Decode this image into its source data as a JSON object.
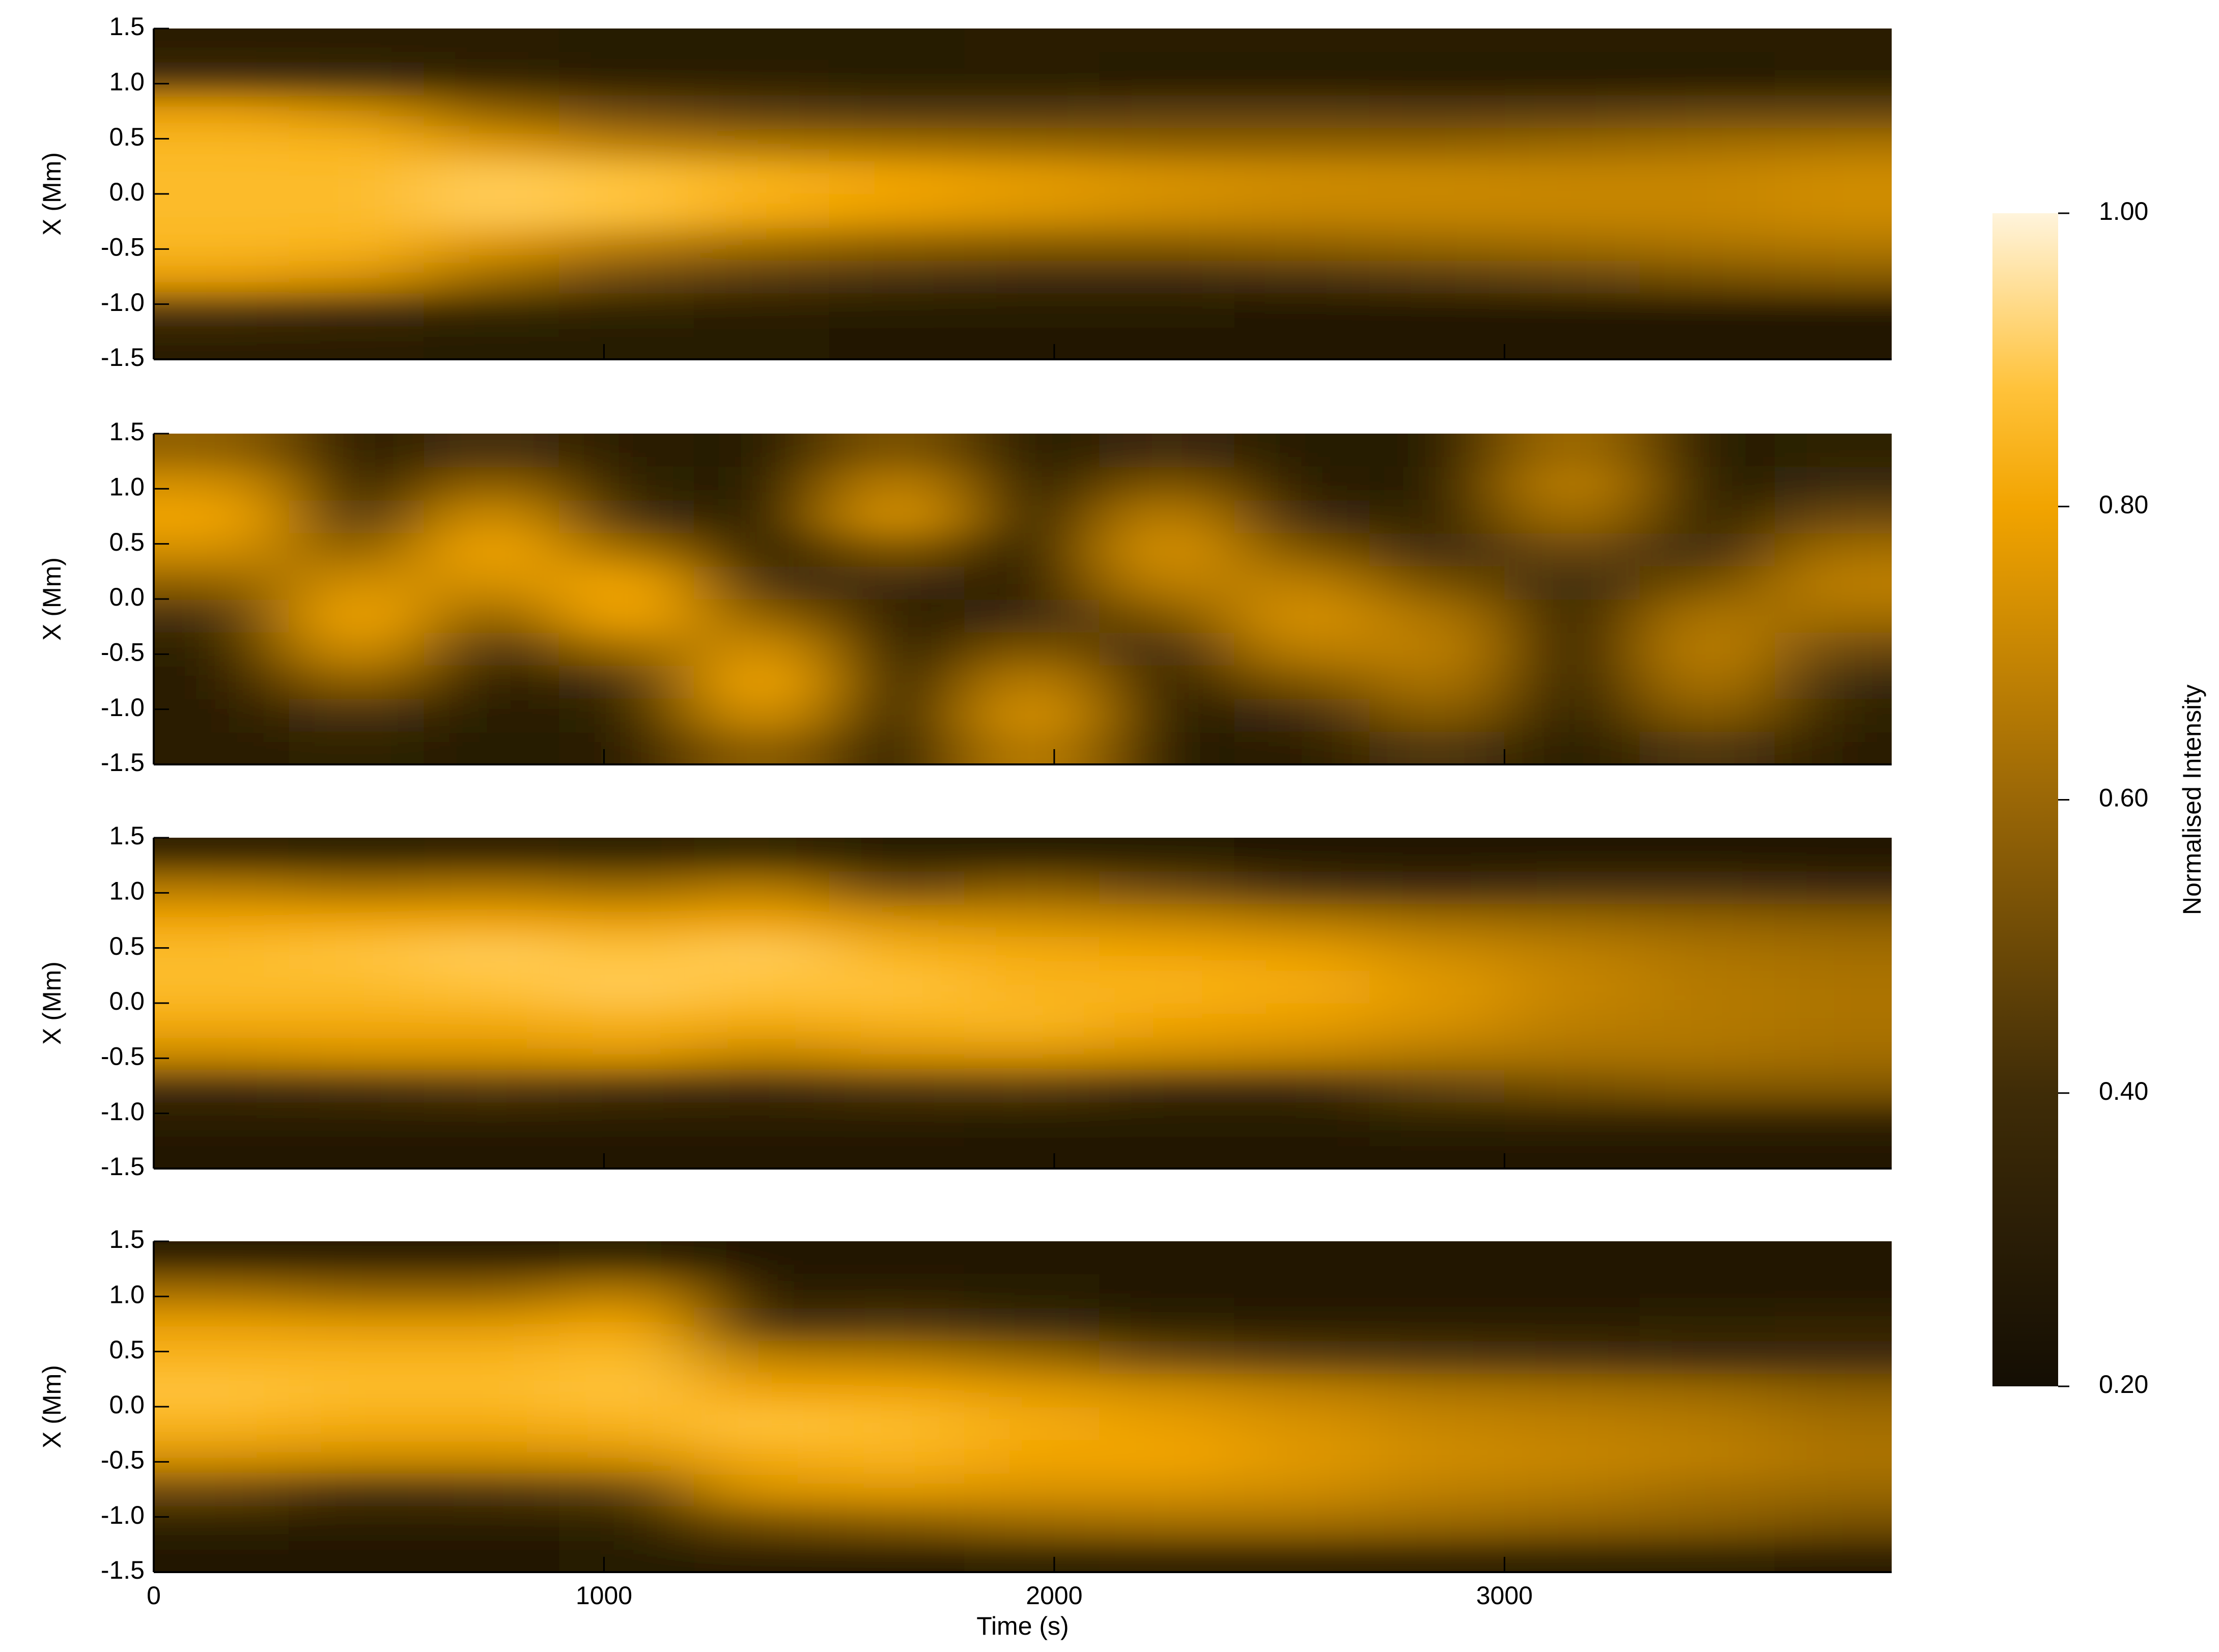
{
  "chart_data": [
    {
      "type": "heatmap",
      "ylabel": "X (Mm)",
      "x": [
        150,
        450,
        750,
        1050,
        1350,
        1650,
        1950,
        2250,
        2550,
        2850,
        3150,
        3450,
        3750
      ],
      "y": [
        -1.35,
        -1.05,
        -0.75,
        -0.45,
        -0.15,
        0.15,
        0.45,
        0.75,
        1.05,
        1.35
      ],
      "z": [
        [
          0.3,
          0.3,
          0.29,
          0.28,
          0.28,
          0.27,
          0.27,
          0.27,
          0.26,
          0.26,
          0.26,
          0.27,
          0.27
        ],
        [
          0.42,
          0.4,
          0.36,
          0.32,
          0.3,
          0.29,
          0.28,
          0.28,
          0.27,
          0.27,
          0.26,
          0.26,
          0.27
        ],
        [
          0.78,
          0.74,
          0.6,
          0.5,
          0.45,
          0.42,
          0.4,
          0.4,
          0.42,
          0.45,
          0.48,
          0.52,
          0.55
        ],
        [
          0.85,
          0.84,
          0.76,
          0.68,
          0.62,
          0.58,
          0.56,
          0.56,
          0.58,
          0.6,
          0.62,
          0.64,
          0.66
        ],
        [
          0.86,
          0.86,
          0.9,
          0.88,
          0.82,
          0.78,
          0.75,
          0.72,
          0.7,
          0.7,
          0.7,
          0.7,
          0.72
        ],
        [
          0.86,
          0.86,
          0.9,
          0.88,
          0.84,
          0.8,
          0.77,
          0.74,
          0.72,
          0.71,
          0.7,
          0.7,
          0.72
        ],
        [
          0.85,
          0.84,
          0.76,
          0.68,
          0.64,
          0.62,
          0.6,
          0.58,
          0.58,
          0.58,
          0.6,
          0.62,
          0.64
        ],
        [
          0.78,
          0.72,
          0.58,
          0.5,
          0.46,
          0.44,
          0.44,
          0.46,
          0.46,
          0.45,
          0.46,
          0.48,
          0.48
        ],
        [
          0.4,
          0.38,
          0.34,
          0.3,
          0.3,
          0.28,
          0.28,
          0.27,
          0.26,
          0.26,
          0.26,
          0.27,
          0.28
        ],
        [
          0.3,
          0.3,
          0.3,
          0.29,
          0.29,
          0.29,
          0.3,
          0.3,
          0.3,
          0.3,
          0.3,
          0.3,
          0.3
        ]
      ],
      "xlim": [
        0,
        3860
      ],
      "xticks": [
        0,
        1000,
        2000,
        3000
      ],
      "ylim": [
        -1.5,
        1.5
      ],
      "yticks": [
        -1.5,
        {
          "value": -1,
          "label": "-1.0"
        },
        -0.5,
        {
          "value": 0,
          "label": "0.0"
        },
        0.5,
        {
          "value": 1,
          "label": "1.0"
        },
        1.5
      ]
    },
    {
      "type": "heatmap",
      "ylabel": "X (Mm)",
      "x": [
        150,
        450,
        750,
        1050,
        1350,
        1650,
        1950,
        2250,
        2550,
        2850,
        3150,
        3450,
        3750
      ],
      "y": [
        -1.35,
        -1.05,
        -0.75,
        -0.45,
        -0.15,
        0.15,
        0.45,
        0.75,
        1.05,
        1.35
      ],
      "z": [
        [
          0.3,
          0.32,
          0.28,
          0.3,
          0.58,
          0.28,
          0.68,
          0.28,
          0.3,
          0.44,
          0.28,
          0.44,
          0.3
        ],
        [
          0.3,
          0.42,
          0.28,
          0.32,
          0.73,
          0.28,
          0.74,
          0.28,
          0.4,
          0.56,
          0.28,
          0.56,
          0.32
        ],
        [
          0.3,
          0.58,
          0.3,
          0.42,
          0.8,
          0.28,
          0.68,
          0.3,
          0.54,
          0.64,
          0.28,
          0.64,
          0.38
        ],
        [
          0.32,
          0.73,
          0.42,
          0.62,
          0.73,
          0.28,
          0.54,
          0.4,
          0.68,
          0.68,
          0.28,
          0.68,
          0.5
        ],
        [
          0.42,
          0.8,
          0.58,
          0.8,
          0.58,
          0.3,
          0.4,
          0.54,
          0.74,
          0.64,
          0.3,
          0.64,
          0.62
        ],
        [
          0.58,
          0.73,
          0.73,
          0.8,
          0.42,
          0.4,
          0.3,
          0.68,
          0.68,
          0.52,
          0.38,
          0.52,
          0.68
        ],
        [
          0.73,
          0.58,
          0.8,
          0.62,
          0.3,
          0.54,
          0.28,
          0.74,
          0.54,
          0.4,
          0.5,
          0.4,
          0.62
        ],
        [
          0.8,
          0.42,
          0.73,
          0.42,
          0.28,
          0.74,
          0.28,
          0.68,
          0.4,
          0.32,
          0.62,
          0.32,
          0.5
        ],
        [
          0.73,
          0.3,
          0.58,
          0.32,
          0.28,
          0.68,
          0.28,
          0.54,
          0.3,
          0.28,
          0.68,
          0.28,
          0.38
        ],
        [
          0.58,
          0.3,
          0.42,
          0.3,
          0.28,
          0.54,
          0.28,
          0.4,
          0.28,
          0.28,
          0.62,
          0.28,
          0.32
        ]
      ],
      "xlim": [
        0,
        3860
      ],
      "xticks": [
        0,
        1000,
        2000,
        3000
      ],
      "ylim": [
        -1.5,
        1.5
      ],
      "yticks": [
        -1.5,
        {
          "value": -1,
          "label": "-1.0"
        },
        -0.5,
        {
          "value": 0,
          "label": "0.0"
        },
        0.5,
        {
          "value": 1,
          "label": "1.0"
        },
        1.5
      ]
    },
    {
      "type": "heatmap",
      "ylabel": "X (Mm)",
      "x": [
        150,
        450,
        750,
        1050,
        1350,
        1650,
        1950,
        2250,
        2550,
        2850,
        3150,
        3450,
        3750
      ],
      "y": [
        -1.35,
        -1.05,
        -0.75,
        -0.45,
        -0.15,
        0.15,
        0.45,
        0.75,
        1.05,
        1.35
      ],
      "z": [
        [
          0.27,
          0.27,
          0.27,
          0.27,
          0.27,
          0.27,
          0.27,
          0.27,
          0.27,
          0.27,
          0.27,
          0.27,
          0.27
        ],
        [
          0.3,
          0.3,
          0.3,
          0.3,
          0.3,
          0.3,
          0.29,
          0.29,
          0.29,
          0.32,
          0.34,
          0.34,
          0.34
        ],
        [
          0.4,
          0.42,
          0.45,
          0.42,
          0.4,
          0.44,
          0.46,
          0.4,
          0.4,
          0.48,
          0.52,
          0.55,
          0.55
        ],
        [
          0.72,
          0.74,
          0.74,
          0.76,
          0.7,
          0.74,
          0.75,
          0.72,
          0.7,
          0.66,
          0.64,
          0.64,
          0.62
        ],
        [
          0.82,
          0.82,
          0.82,
          0.84,
          0.82,
          0.84,
          0.85,
          0.8,
          0.78,
          0.74,
          0.68,
          0.66,
          0.64
        ],
        [
          0.86,
          0.86,
          0.88,
          0.9,
          0.88,
          0.88,
          0.84,
          0.84,
          0.82,
          0.76,
          0.7,
          0.66,
          0.64
        ],
        [
          0.86,
          0.88,
          0.9,
          0.88,
          0.9,
          0.84,
          0.82,
          0.8,
          0.78,
          0.72,
          0.68,
          0.64,
          0.62
        ],
        [
          0.8,
          0.8,
          0.8,
          0.78,
          0.8,
          0.74,
          0.72,
          0.7,
          0.66,
          0.62,
          0.6,
          0.58,
          0.56
        ],
        [
          0.66,
          0.62,
          0.64,
          0.6,
          0.66,
          0.5,
          0.56,
          0.5,
          0.42,
          0.4,
          0.42,
          0.42,
          0.4
        ],
        [
          0.34,
          0.32,
          0.34,
          0.32,
          0.36,
          0.28,
          0.28,
          0.28,
          0.26,
          0.26,
          0.27,
          0.27,
          0.27
        ]
      ],
      "xlim": [
        0,
        3860
      ],
      "xticks": [
        0,
        1000,
        2000,
        3000
      ],
      "ylim": [
        -1.5,
        1.5
      ],
      "yticks": [
        -1.5,
        {
          "value": -1,
          "label": "-1.0"
        },
        -0.5,
        {
          "value": 0,
          "label": "0.0"
        },
        0.5,
        {
          "value": 1,
          "label": "1.0"
        },
        1.5
      ]
    },
    {
      "type": "heatmap",
      "ylabel": "X (Mm)",
      "xlabel": "Time (s)",
      "x": [
        150,
        450,
        750,
        1050,
        1350,
        1650,
        1950,
        2250,
        2550,
        2850,
        3150,
        3450,
        3750
      ],
      "y": [
        -1.35,
        -1.05,
        -0.75,
        -0.45,
        -0.15,
        0.15,
        0.45,
        0.75,
        1.05,
        1.35
      ],
      "z": [
        [
          0.27,
          0.27,
          0.27,
          0.28,
          0.3,
          0.3,
          0.32,
          0.34,
          0.34,
          0.34,
          0.32,
          0.32,
          0.3
        ],
        [
          0.32,
          0.3,
          0.3,
          0.32,
          0.52,
          0.56,
          0.6,
          0.62,
          0.62,
          0.6,
          0.58,
          0.56,
          0.52
        ],
        [
          0.5,
          0.42,
          0.44,
          0.48,
          0.74,
          0.76,
          0.74,
          0.74,
          0.72,
          0.68,
          0.66,
          0.62,
          0.6
        ],
        [
          0.74,
          0.72,
          0.72,
          0.74,
          0.82,
          0.84,
          0.8,
          0.8,
          0.76,
          0.72,
          0.7,
          0.68,
          0.64
        ],
        [
          0.84,
          0.82,
          0.82,
          0.84,
          0.88,
          0.86,
          0.82,
          0.78,
          0.74,
          0.7,
          0.68,
          0.66,
          0.62
        ],
        [
          0.88,
          0.86,
          0.86,
          0.88,
          0.8,
          0.8,
          0.76,
          0.72,
          0.68,
          0.64,
          0.62,
          0.6,
          0.56
        ],
        [
          0.84,
          0.84,
          0.84,
          0.86,
          0.68,
          0.66,
          0.6,
          0.5,
          0.46,
          0.44,
          0.42,
          0.4,
          0.4
        ],
        [
          0.78,
          0.76,
          0.76,
          0.8,
          0.42,
          0.44,
          0.38,
          0.32,
          0.3,
          0.3,
          0.3,
          0.32,
          0.34
        ],
        [
          0.62,
          0.58,
          0.58,
          0.66,
          0.3,
          0.3,
          0.28,
          0.27,
          0.27,
          0.27,
          0.26,
          0.27,
          0.27
        ],
        [
          0.3,
          0.3,
          0.3,
          0.32,
          0.27,
          0.27,
          0.27,
          0.27,
          0.27,
          0.27,
          0.27,
          0.26,
          0.26
        ]
      ],
      "xlim": [
        0,
        3860
      ],
      "xticks": [
        0,
        1000,
        2000,
        3000
      ],
      "ylim": [
        -1.5,
        1.5
      ],
      "yticks": [
        -1.5,
        {
          "value": -1,
          "label": "-1.0"
        },
        -0.5,
        {
          "value": 0,
          "label": "0.0"
        },
        0.5,
        {
          "value": 1,
          "label": "1.0"
        },
        1.5
      ]
    }
  ],
  "colorbar": {
    "label": "Normalised Intensity",
    "zlim": [
      0.2,
      1
    ],
    "ticks": [
      {
        "value": 0.2,
        "label": "0.20"
      },
      {
        "value": 0.4,
        "label": "0.40"
      },
      {
        "value": 0.6,
        "label": "0.60"
      },
      {
        "value": 0.8,
        "label": "0.80"
      },
      {
        "value": 1,
        "label": "1.00"
      }
    ],
    "colorscale": [
      [
        0.2,
        "#140e04"
      ],
      [
        0.4,
        "#3f2c07"
      ],
      [
        0.6,
        "#9a6706"
      ],
      [
        0.8,
        "#f2a400"
      ],
      [
        0.88,
        "#ffc23a"
      ],
      [
        1,
        "#fff4dc"
      ]
    ]
  }
}
